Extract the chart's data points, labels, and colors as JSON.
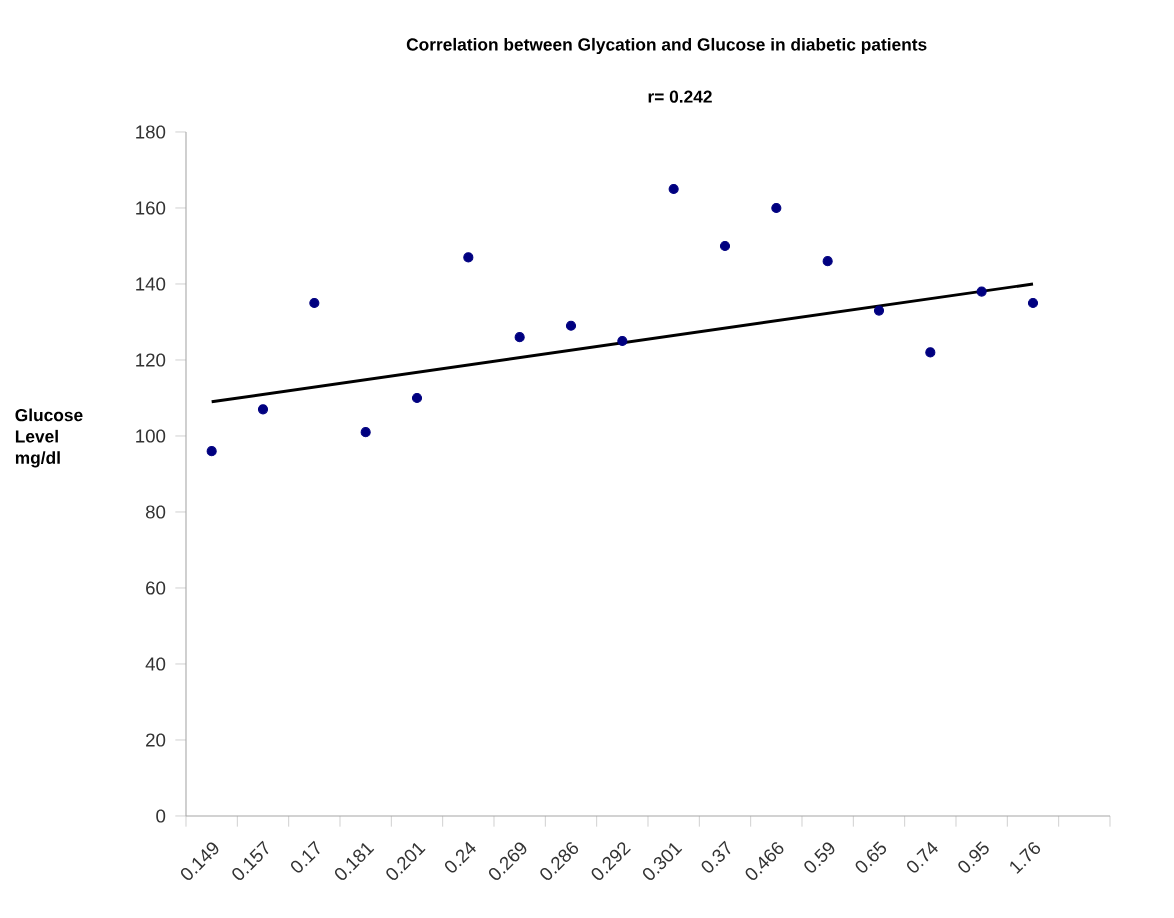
{
  "chart_data": {
    "type": "scatter",
    "title": "Correlation between Glycation and Glucose in diabetic patients",
    "subtitle": "r= 0.242",
    "ylabel": "Glucose Level mg/dl",
    "categories": [
      "0.149",
      "0.157",
      "0.17",
      "0.181",
      "0.201",
      "0.24",
      "0.269",
      "0.286",
      "0.292",
      "0.301",
      "0.37",
      "0.466",
      "0.59",
      "0.65",
      "0.74",
      "0.95",
      "1.76",
      null
    ],
    "ylim": [
      0,
      180
    ],
    "yticks": [
      0,
      20,
      40,
      60,
      80,
      100,
      120,
      140,
      160,
      180
    ],
    "grid": false,
    "marker": "circle",
    "series": [
      {
        "color": "#000080",
        "values": [
          96,
          107,
          135,
          101,
          110,
          147,
          126,
          129,
          125,
          165,
          150,
          160,
          146,
          133,
          122,
          138,
          135,
          null
        ]
      },
      {
        "type": "line",
        "color": "#000000",
        "marker": "none",
        "x": [
          "0.149",
          "1.76"
        ],
        "values": [
          109,
          140
        ]
      }
    ]
  }
}
